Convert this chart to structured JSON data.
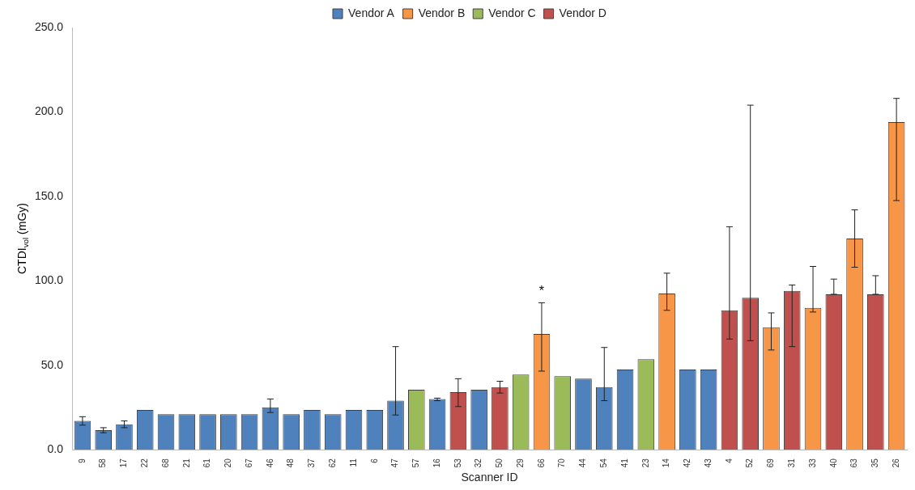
{
  "chart_data": {
    "type": "bar",
    "xlabel": "Scanner ID",
    "ylabel": "CTDI$_{vol}$ (mGy)",
    "categories": [
      "9",
      "58",
      "17",
      "22",
      "68",
      "21",
      "61",
      "20",
      "67",
      "46",
      "48",
      "37",
      "62",
      "11",
      "6",
      "47",
      "57",
      "16",
      "53",
      "32",
      "50",
      "29",
      "66",
      "70",
      "44",
      "54",
      "41",
      "23",
      "14",
      "42",
      "43",
      "4",
      "52",
      "69",
      "31",
      "33",
      "40",
      "63",
      "35",
      "26"
    ],
    "series": [
      {
        "name": "Vendor A",
        "color": "#4f81bd",
        "values": [
          17,
          11.5,
          15,
          23.5,
          21,
          21,
          21,
          21,
          21,
          25,
          21,
          23.5,
          21,
          23.5,
          23.5,
          29,
          null,
          30,
          null,
          35.5,
          null,
          null,
          null,
          null,
          42,
          37,
          47.5,
          null,
          null,
          47.5,
          47.5,
          null,
          null,
          null,
          null,
          null,
          null,
          null,
          null,
          null
        ],
        "errors": [
          [
            14.5,
            19.5
          ],
          [
            10,
            13
          ],
          [
            13,
            17
          ],
          null,
          null,
          null,
          null,
          null,
          null,
          [
            22,
            30
          ],
          null,
          null,
          null,
          null,
          null,
          [
            20.5,
            61
          ],
          null,
          [
            29,
            30.5
          ],
          null,
          null,
          null,
          null,
          null,
          null,
          null,
          [
            29,
            60.5
          ],
          null,
          null,
          null,
          null,
          null,
          null,
          null,
          null,
          null,
          null,
          null,
          null,
          null,
          null
        ]
      },
      {
        "name": "Vendor B",
        "color": "#f79646",
        "values": [
          null,
          null,
          null,
          null,
          null,
          null,
          null,
          null,
          null,
          null,
          null,
          null,
          null,
          null,
          null,
          null,
          null,
          null,
          null,
          null,
          null,
          null,
          68.5,
          null,
          null,
          null,
          null,
          null,
          92.5,
          null,
          null,
          null,
          null,
          72.5,
          null,
          84,
          null,
          125,
          null,
          194
        ],
        "errors": [
          null,
          null,
          null,
          null,
          null,
          null,
          null,
          null,
          null,
          null,
          null,
          null,
          null,
          null,
          null,
          null,
          null,
          null,
          null,
          null,
          null,
          null,
          [
            46.5,
            87
          ],
          null,
          null,
          null,
          null,
          null,
          [
            82.5,
            104.5
          ],
          null,
          null,
          null,
          null,
          [
            59,
            81
          ],
          null,
          [
            81.5,
            108.5
          ],
          null,
          [
            108,
            142
          ],
          null,
          [
            147.5,
            208
          ]
        ]
      },
      {
        "name": "Vendor C",
        "color": "#9bbb59",
        "values": [
          null,
          null,
          null,
          null,
          null,
          null,
          null,
          null,
          null,
          null,
          null,
          null,
          null,
          null,
          null,
          null,
          35.5,
          null,
          null,
          null,
          null,
          44.5,
          null,
          43.5,
          null,
          null,
          null,
          53.5,
          null,
          null,
          null,
          null,
          null,
          null,
          null,
          null,
          null,
          null,
          null,
          null
        ]
      },
      {
        "name": "Vendor D",
        "color": "#c0504d",
        "values": [
          null,
          null,
          null,
          null,
          null,
          null,
          null,
          null,
          null,
          null,
          null,
          null,
          null,
          null,
          null,
          null,
          null,
          null,
          34,
          null,
          37,
          null,
          null,
          null,
          null,
          null,
          null,
          null,
          null,
          null,
          null,
          82.5,
          90,
          null,
          94,
          null,
          92,
          null,
          92,
          null
        ],
        "errors": [
          null,
          null,
          null,
          null,
          null,
          null,
          null,
          null,
          null,
          null,
          null,
          null,
          null,
          null,
          null,
          null,
          null,
          null,
          [
            25.5,
            42
          ],
          null,
          [
            33.5,
            40.5
          ],
          null,
          null,
          null,
          null,
          null,
          null,
          null,
          null,
          null,
          null,
          [
            65.5,
            132
          ],
          [
            64.5,
            204
          ],
          null,
          [
            61,
            97.5
          ],
          null,
          [
            92,
            101
          ],
          null,
          [
            92,
            103
          ],
          null
        ]
      }
    ],
    "ylim": [
      0,
      250
    ],
    "yticks": [
      {
        "value": 0,
        "label": "0.0"
      },
      {
        "value": 50,
        "label": "50.0"
      },
      {
        "value": 100,
        "label": "100.0"
      },
      {
        "value": 150,
        "label": "150.0"
      },
      {
        "value": 200,
        "label": "200.0"
      },
      {
        "value": 250,
        "label": "250.0"
      }
    ],
    "annotations": [
      {
        "text": "*",
        "x": "66",
        "y": 87
      }
    ],
    "grid": false,
    "legend": "top"
  }
}
